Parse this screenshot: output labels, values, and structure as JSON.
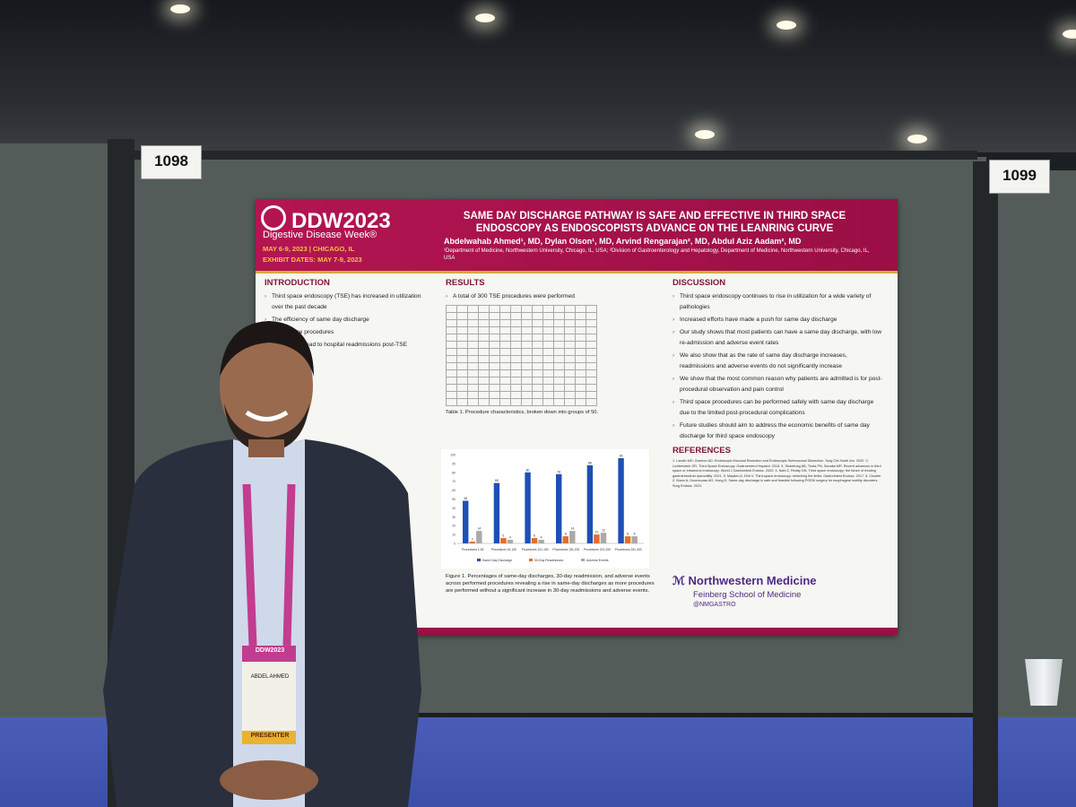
{
  "booths": {
    "left_number": "1098",
    "right_number": "1099"
  },
  "poster": {
    "logo_text": "DDW2023",
    "logo_sub": "Digestive Disease Week®",
    "dates": "MAY 6-9, 2023 | CHICAGO, IL",
    "exhibit_dates": "EXHIBIT DATES: MAY 7-9, 2023",
    "title": "SAME DAY DISCHARGE PATHWAY IS SAFE AND EFFECTIVE IN THIRD SPACE ENDOSCOPY AS ENDOSCOPISTS ADVANCE ON THE LEANRING CURVE",
    "authors": "Abdelwahab Ahmed¹, MD, Dylan Olson¹, MD, Arvind Rengarajan², MD, Abdul Aziz Aadam², MD",
    "affiliations": "¹Department of Medicine, Northwestern University, Chicago, IL, USA; ²Division of Gastroenterology and Hepatology, Department of Medicine, Northwestern University, Chicago, IL, USA",
    "introduction": {
      "title": "INTRODUCTION",
      "bullets": [
        "Third space endoscopy (TSE) has increased in utilization over the past decade",
        "The efficiency of same day discharge",
        "Third space procedures",
        "Factors that lead to hospital readmissions post-TSE"
      ]
    },
    "results": {
      "title": "RESULTS",
      "bullet": "A total of 300 TSE procedures were performed",
      "table_caption": "Table 1. Procedure characteristics, broken down into groups of 50.",
      "figure_caption": "Figure 1. Percentages of same-day discharges, 30-day readmission, and adverse events across performed procedures revealing a rise in same-day discharges as more procedures are performed without a significant increase in 30-day readmissions and adverse events."
    },
    "discussion": {
      "title": "DISCUSSION",
      "bullets": [
        "Third space endoscopy continues to rise in utilization for a wide variety of pathologies",
        "Increased efforts have made a push for same day discharge",
        "Our study shows that most patients can have a same day discharge, with low re-admission and adverse event rates",
        "We also show that as the rate of same day discharge increases, readmissions and adverse events do not significantly increase",
        "We show that the most common reason why patients are admitted is for post-procedural observation and pain control",
        "Third space procedures can be performed safely with same day discharge due to the limited post-procedural complications",
        "Future studies should aim to address the economic benefits of same day discharge for third space endoscopy"
      ]
    },
    "references": {
      "title": "REFERENCES",
      "text": "1. Landin MD, Guerron AD. Endoscopic Mucosal Resection and Endoscopic Submucosal Dissection. Surg Clin North Am. 2020. 2. Lichtenstein GR. Third-Space Endoscopy. Gastroenterol Hepatol. 2018. 3. Shanbhag AB, Thota PN, Sanaka MR. Recent advances in third space or intramural endoscopy. World J Gastrointest Endosc. 2020. 4. Nabi Z, Reddy DN. Third space endoscopy: the future of treating gastrointestinal dysmotility. 2021. 5. Maydeo A, Dhir V. Third-space endoscopy: stretching the limits. Gastrointest Endosc. 2017. 6. Cloutier Z, Mann A, Doumouras AG, Hong D. Same-day discharge is safe and feasible following POEM surgery for esophageal motility disorders. Surg Endosc. 2021."
    },
    "sponsor": {
      "name": "Northwestern Medicine",
      "school": "Feinberg School of Medicine",
      "handle": "@NMGASTRO"
    }
  },
  "chart_data": {
    "type": "bar",
    "categories": [
      "Procedures 1-50",
      "Procedures 51-100",
      "Procedures 101-150",
      "Procedures 151-200",
      "Procedures 201-250",
      "Procedures 251-300"
    ],
    "series": [
      {
        "name": "Same Day Discharge",
        "values": [
          48,
          68,
          80,
          78,
          88,
          96
        ],
        "color": "#1f4fb5"
      },
      {
        "name": "30-Day Readmission",
        "values": [
          2,
          6,
          6,
          8,
          10,
          8
        ],
        "color": "#e0702a"
      },
      {
        "name": "Adverse Events",
        "values": [
          14,
          4,
          4,
          14,
          12,
          8
        ],
        "color": "#a9a9a9"
      }
    ],
    "ylim": [
      0,
      100
    ]
  },
  "badge": {
    "event": "DDW2023",
    "name": "ABDEL AHMED",
    "role": "PRESENTER"
  }
}
